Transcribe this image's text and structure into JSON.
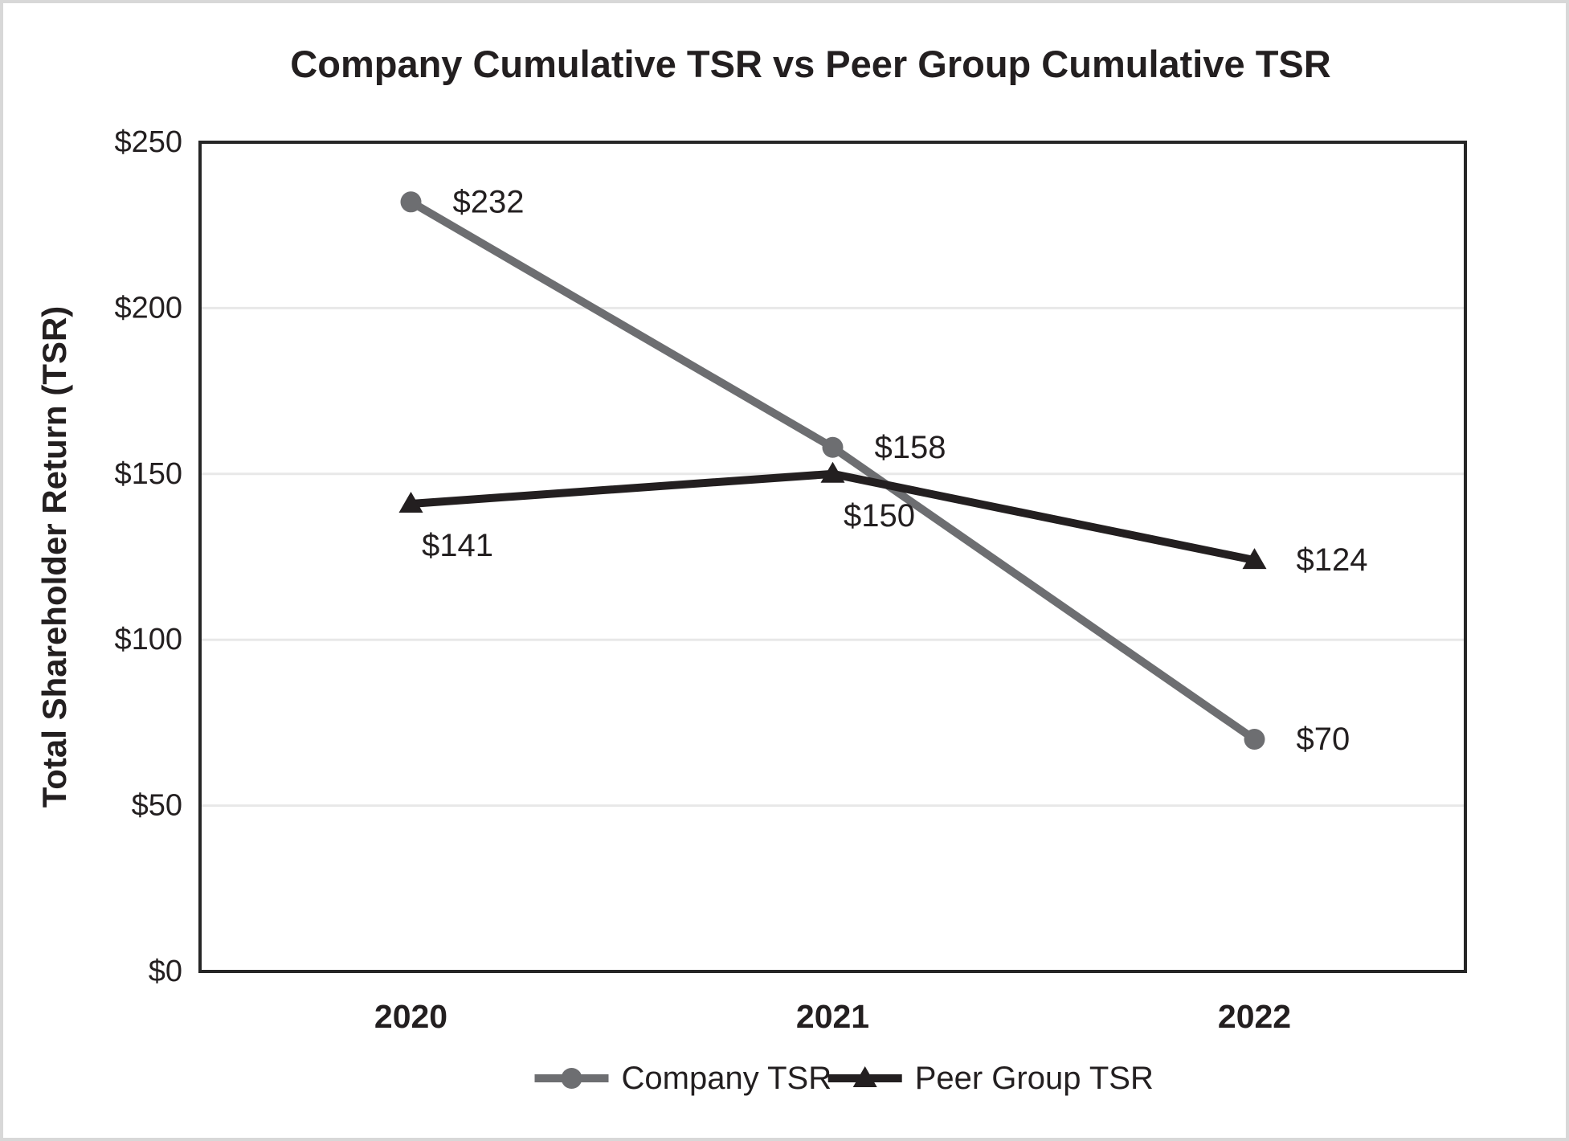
{
  "page": {
    "background_color": "#ffffff",
    "frame_border_color": "#d8d8d8"
  },
  "colors": {
    "company_series": "#6d6e71",
    "peer_series": "#231f20",
    "gridline": "#e8e8e8",
    "plot_border": "#262626",
    "text": "#231f20"
  },
  "chart_data": {
    "type": "line",
    "title": "Company Cumulative TSR vs Peer Group Cumulative TSR",
    "xlabel": "",
    "ylabel": "Total Shareholder Return (TSR)",
    "categories": [
      "2020",
      "2021",
      "2022"
    ],
    "series": [
      {
        "name": "Company TSR",
        "values": [
          232,
          158,
          70
        ],
        "value_labels": [
          "$232",
          "$158",
          "$70"
        ],
        "label_placements": [
          "right",
          "right",
          "right"
        ],
        "color": "#6d6e71",
        "marker": "circle"
      },
      {
        "name": "Peer Group TSR",
        "values": [
          141,
          150,
          124
        ],
        "value_labels": [
          "$141",
          "$150",
          "$124"
        ],
        "label_placements": [
          "below",
          "below",
          "right"
        ],
        "color": "#231f20",
        "marker": "triangle"
      }
    ],
    "ylim": [
      0,
      250
    ],
    "ytick_step": 50,
    "ytick_labels": [
      "$0",
      "$50",
      "$100",
      "$150",
      "$200",
      "$250"
    ],
    "grid": true,
    "legend_position": "bottom",
    "legend_entries": [
      "Company TSR",
      "Peer Group TSR"
    ]
  }
}
